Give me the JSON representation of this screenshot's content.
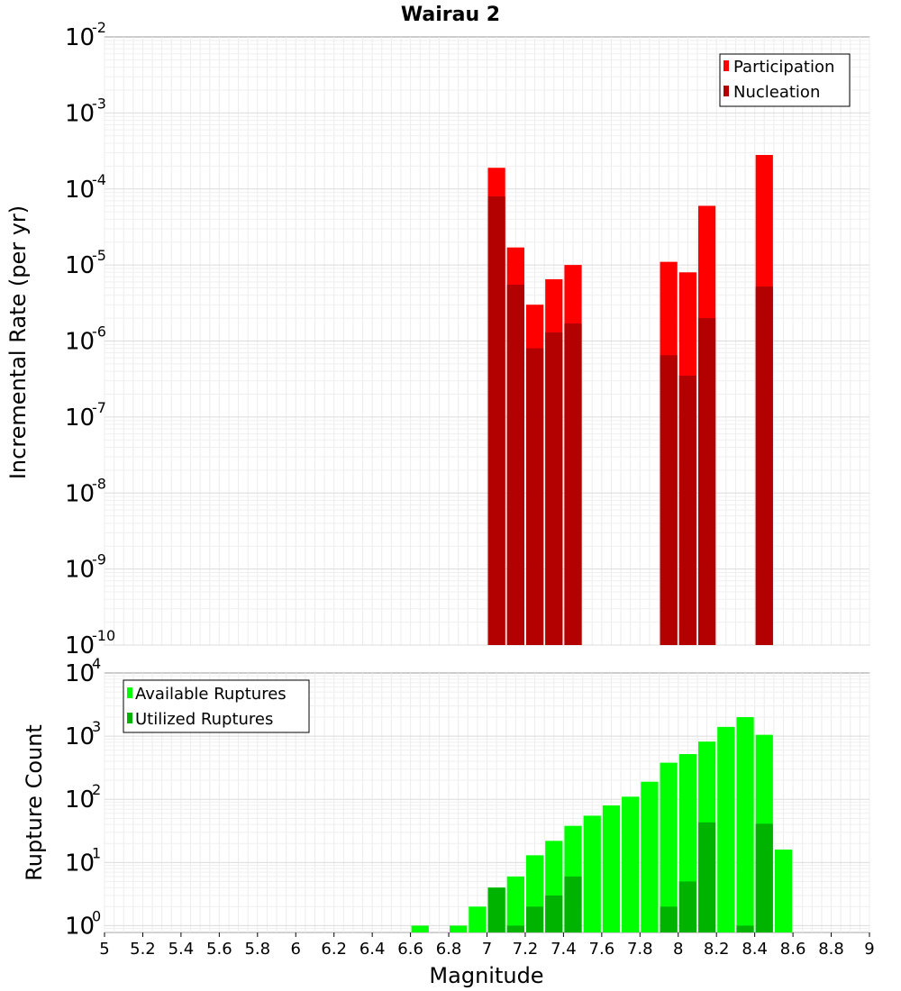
{
  "chart_data": [
    {
      "type": "bar",
      "title": "Wairau 2",
      "ylabel": "Incremental Rate (per yr)",
      "yscale": "log",
      "ylim": [
        1e-10,
        0.01
      ],
      "xlim": [
        5,
        9
      ],
      "bar_width": 0.1,
      "grid": true,
      "legend_position": "top-right",
      "y_ticks": [
        {
          "base": "10",
          "exp": "-10",
          "value": 1e-10
        },
        {
          "base": "10",
          "exp": "-9",
          "value": 1e-09
        },
        {
          "base": "10",
          "exp": "-8",
          "value": 1e-08
        },
        {
          "base": "10",
          "exp": "-7",
          "value": 1e-07
        },
        {
          "base": "10",
          "exp": "-6",
          "value": 1e-06
        },
        {
          "base": "10",
          "exp": "-5",
          "value": 1e-05
        },
        {
          "base": "10",
          "exp": "-4",
          "value": 0.0001
        },
        {
          "base": "10",
          "exp": "-3",
          "value": 0.001
        },
        {
          "base": "10",
          "exp": "-2",
          "value": 0.01
        }
      ],
      "series": [
        {
          "name": "Participation",
          "color": "#ff0000",
          "x": [
            7.05,
            7.15,
            7.25,
            7.35,
            7.45,
            7.95,
            8.05,
            8.15,
            8.45
          ],
          "values": [
            0.00019,
            1.7e-05,
            3e-06,
            6.5e-06,
            1e-05,
            1.1e-05,
            8e-06,
            6e-05,
            0.00028
          ]
        },
        {
          "name": "Nucleation",
          "color": "#b30000",
          "x": [
            7.05,
            7.15,
            7.25,
            7.35,
            7.45,
            7.95,
            8.05,
            8.15,
            8.45
          ],
          "values": [
            8e-05,
            5.5e-06,
            8e-07,
            1.3e-06,
            1.7e-06,
            6.5e-07,
            3.5e-07,
            2e-06,
            5.2e-06
          ]
        }
      ]
    },
    {
      "type": "bar",
      "ylabel": "Rupture Count",
      "xlabel": "Magnitude",
      "yscale": "log",
      "ylim": [
        0.78,
        10000
      ],
      "xlim": [
        5,
        9
      ],
      "bar_width": 0.1,
      "grid": true,
      "legend_position": "top-left",
      "x_tick_labels": [
        "5",
        "5.2",
        "5.4",
        "5.6",
        "5.8",
        "6",
        "6.2",
        "6.4",
        "6.6",
        "6.8",
        "7",
        "7.2",
        "7.4",
        "7.6",
        "7.8",
        "8",
        "8.2",
        "8.4",
        "8.6",
        "8.8",
        "9"
      ],
      "x_tick_values": [
        5,
        5.2,
        5.4,
        5.6,
        5.8,
        6,
        6.2,
        6.4,
        6.6,
        6.8,
        7,
        7.2,
        7.4,
        7.6,
        7.8,
        8,
        8.2,
        8.4,
        8.6,
        8.8,
        9
      ],
      "y_ticks": [
        {
          "base": "10",
          "exp": "0",
          "value": 1
        },
        {
          "base": "10",
          "exp": "1",
          "value": 10
        },
        {
          "base": "10",
          "exp": "2",
          "value": 100
        },
        {
          "base": "10",
          "exp": "3",
          "value": 1000
        },
        {
          "base": "10",
          "exp": "4",
          "value": 10000
        }
      ],
      "series": [
        {
          "name": "Available Ruptures",
          "color": "#00ff00",
          "x": [
            6.65,
            6.85,
            6.95,
            7.05,
            7.15,
            7.25,
            7.35,
            7.45,
            7.55,
            7.65,
            7.75,
            7.85,
            7.95,
            8.05,
            8.15,
            8.25,
            8.35,
            8.45,
            8.55
          ],
          "values": [
            1,
            1,
            2,
            4,
            6,
            13,
            22,
            38,
            55,
            80,
            110,
            190,
            380,
            520,
            820,
            1400,
            2000,
            1050,
            16
          ]
        },
        {
          "name": "Utilized Ruptures",
          "color": "#00b300",
          "x": [
            7.05,
            7.15,
            7.25,
            7.35,
            7.45,
            7.95,
            8.05,
            8.15,
            8.35,
            8.45
          ],
          "values": [
            4,
            1,
            2,
            3,
            6,
            2,
            5,
            43,
            1,
            41
          ]
        }
      ]
    }
  ]
}
